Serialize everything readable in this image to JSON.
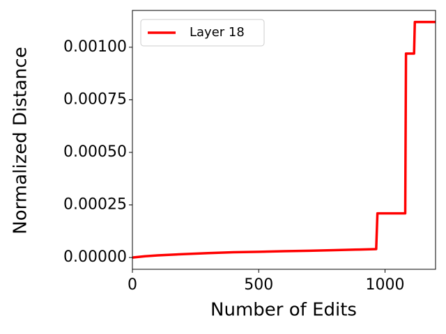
{
  "chart_data": {
    "type": "line",
    "xlabel": "Number of Edits",
    "ylabel": "Normalized Distance",
    "x": [
      0,
      50,
      100,
      200,
      300,
      400,
      500,
      600,
      700,
      800,
      900,
      965,
      970,
      1080,
      1083,
      1115,
      1118,
      1200
    ],
    "series": [
      {
        "name": "Layer 18",
        "color": "#ff0000",
        "values": [
          0,
          6e-06,
          1e-05,
          1.6e-05,
          2.1e-05,
          2.5e-05,
          2.7e-05,
          3e-05,
          3.2e-05,
          3.5e-05,
          3.8e-05,
          4e-05,
          0.00021,
          0.00021,
          0.00097,
          0.00097,
          0.00112,
          0.00112
        ]
      }
    ],
    "xlim": [
      0,
      1200
    ],
    "xticks": [
      0,
      500,
      1000
    ],
    "ylim": [
      -5.6e-05,
      0.001175
    ],
    "yticks": [
      {
        "value": 0,
        "label": "0.00000"
      },
      {
        "value": 0.00025,
        "label": "0.00025"
      },
      {
        "value": 0.0005,
        "label": "0.00050"
      },
      {
        "value": 0.00075,
        "label": "0.00075"
      },
      {
        "value": 0.001,
        "label": "0.00100"
      }
    ],
    "grid": false,
    "legend": "upper left"
  }
}
